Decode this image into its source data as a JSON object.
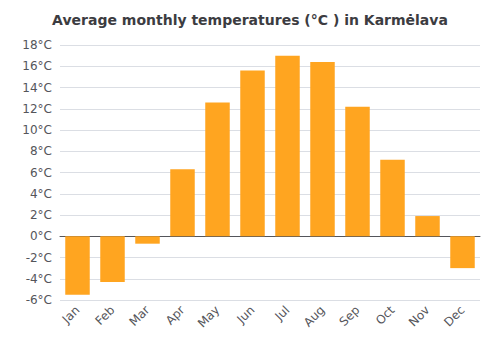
{
  "chart_data": {
    "type": "bar",
    "title": "Average monthly temperatures (°C ) in Karmėlava",
    "categories": [
      "Jan",
      "Feb",
      "Mar",
      "Apr",
      "May",
      "Jun",
      "Jul",
      "Aug",
      "Sep",
      "Oct",
      "Nov",
      "Dec"
    ],
    "values": [
      -5.5,
      -4.3,
      -0.7,
      6.3,
      12.6,
      15.6,
      17.0,
      16.4,
      12.2,
      7.2,
      1.9,
      -3.0
    ],
    "color": "#FFA520",
    "ylim": [
      -6,
      18
    ],
    "yticks": [
      {
        "value": -6,
        "label": "-6°C"
      },
      {
        "value": -4,
        "label": "-4°C"
      },
      {
        "value": -2,
        "label": "-2°C"
      },
      {
        "value": 0,
        "label": "0°C"
      },
      {
        "value": 2,
        "label": "2°C"
      },
      {
        "value": 4,
        "label": "4°C"
      },
      {
        "value": 6,
        "label": "6°C"
      },
      {
        "value": 8,
        "label": "8°C"
      },
      {
        "value": 10,
        "label": "10°C"
      },
      {
        "value": 12,
        "label": "12°C"
      },
      {
        "value": 14,
        "label": "14°C"
      },
      {
        "value": 16,
        "label": "16°C"
      },
      {
        "value": 18,
        "label": "18°C"
      }
    ],
    "grid": true
  }
}
